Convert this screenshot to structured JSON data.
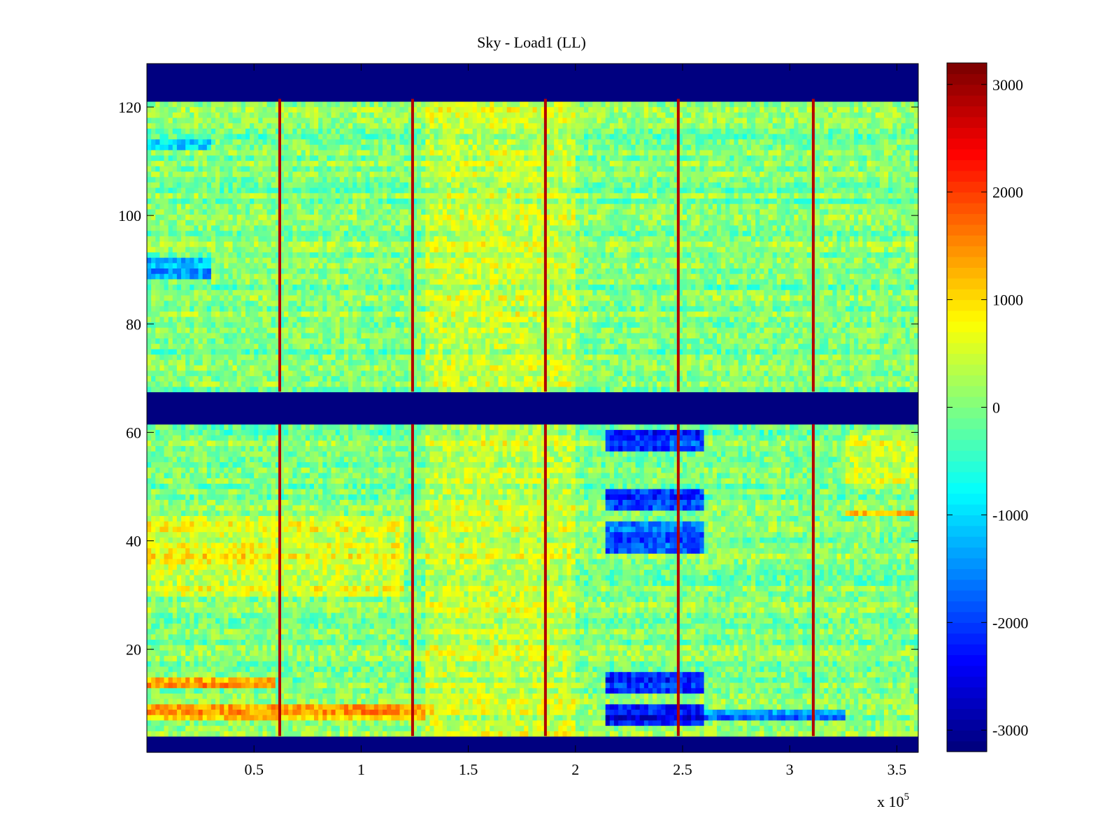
{
  "chart_data": {
    "type": "heatmap",
    "title": "Sky - Load1 (LL)",
    "xlabel": "",
    "ylabel": "",
    "x_multiplier_label": {
      "base": "x 10",
      "exponent": "5"
    },
    "xlim": [
      0,
      3.6
    ],
    "ylim": [
      1,
      128
    ],
    "x_ticks": [
      {
        "value": 0.5,
        "label": "0.5"
      },
      {
        "value": 1,
        "label": "1"
      },
      {
        "value": 1.5,
        "label": "1.5"
      },
      {
        "value": 2,
        "label": "2"
      },
      {
        "value": 2.5,
        "label": "2.5"
      },
      {
        "value": 3,
        "label": "3"
      },
      {
        "value": 3.5,
        "label": "3.5"
      }
    ],
    "y_ticks": [
      {
        "value": 20,
        "label": "20"
      },
      {
        "value": 40,
        "label": "40"
      },
      {
        "value": 60,
        "label": "60"
      },
      {
        "value": 80,
        "label": "80"
      },
      {
        "value": 100,
        "label": "100"
      },
      {
        "value": 120,
        "label": "120"
      }
    ],
    "colormap": "jet",
    "clim": [
      -3200,
      3200
    ],
    "colorbar_ticks": [
      {
        "value": 3000,
        "label": "3000"
      },
      {
        "value": 2000,
        "label": "2000"
      },
      {
        "value": 1000,
        "label": "1000"
      },
      {
        "value": 0,
        "label": "0"
      },
      {
        "value": -1000,
        "label": "-1000"
      },
      {
        "value": -2000,
        "label": "-2000"
      },
      {
        "value": -3000,
        "label": "-3000"
      }
    ],
    "masked_y_ranges": [
      [
        1,
        4
      ],
      [
        61.5,
        67.5
      ],
      [
        121.5,
        128
      ]
    ],
    "masked_value": -3200,
    "base_value": 0,
    "spikes_x": [
      0.62,
      1.24,
      1.86,
      2.48,
      3.11
    ],
    "spike_value": 3200,
    "features": [
      {
        "x": [
          0,
          0.6
        ],
        "y": [
          12.5,
          15
        ],
        "value": 1800
      },
      {
        "x": [
          0,
          1.35
        ],
        "y": [
          7,
          9.5
        ],
        "value": 1600
      },
      {
        "x": [
          0,
          0.6
        ],
        "y": [
          36,
          39
        ],
        "value": 1200
      },
      {
        "x": [
          0,
          1.2
        ],
        "y": [
          30,
          45
        ],
        "value": 700
      },
      {
        "x": [
          1.3,
          2.0
        ],
        "y": [
          4,
          122
        ],
        "value": 500
      },
      {
        "x": [
          2.15,
          2.6
        ],
        "y": [
          57,
          61
        ],
        "value": -2600
      },
      {
        "x": [
          2.15,
          2.6
        ],
        "y": [
          46,
          50
        ],
        "value": -2600
      },
      {
        "x": [
          2.15,
          2.6
        ],
        "y": [
          38,
          44
        ],
        "value": -2300
      },
      {
        "x": [
          2.15,
          2.6
        ],
        "y": [
          12,
          15.5
        ],
        "value": -2700
      },
      {
        "x": [
          2.15,
          2.6
        ],
        "y": [
          6,
          10
        ],
        "value": -3000
      },
      {
        "x": [
          2.6,
          3.26
        ],
        "y": [
          7,
          9
        ],
        "value": -2000
      },
      {
        "x": [
          3.26,
          3.6
        ],
        "y": [
          45,
          46
        ],
        "value": 1500
      },
      {
        "x": [
          3.26,
          3.6
        ],
        "y": [
          50,
          61
        ],
        "value": 600
      },
      {
        "x": [
          0,
          0.3
        ],
        "y": [
          88,
          92
        ],
        "value": -1800
      },
      {
        "x": [
          0,
          0.3
        ],
        "y": [
          112,
          114
        ],
        "value": -1200
      }
    ]
  }
}
